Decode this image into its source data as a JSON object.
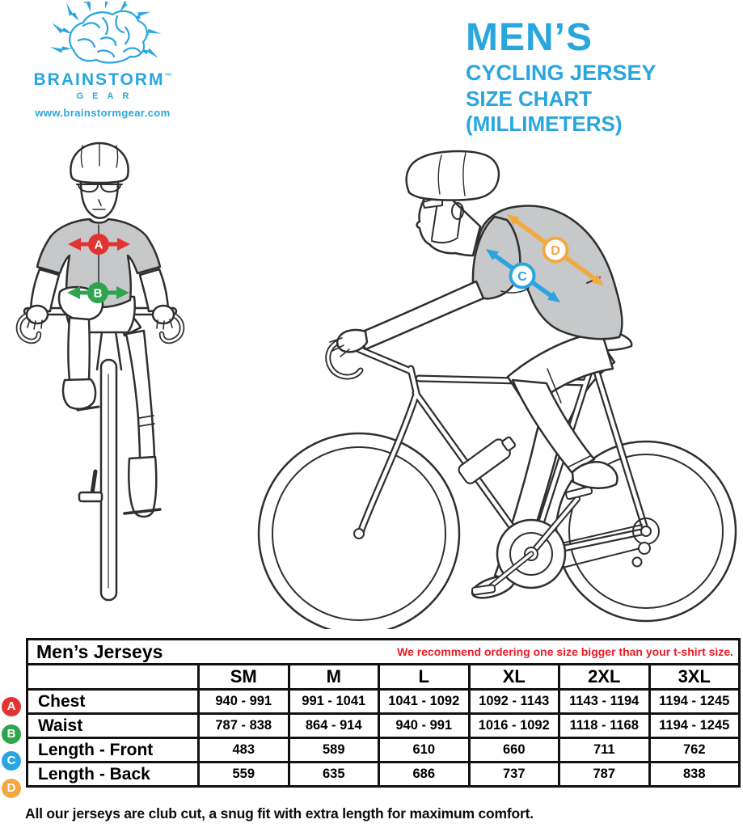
{
  "brand": {
    "name": "BRAINSTORM",
    "tm": "™",
    "sub": "GEAR",
    "url": "www.brainstormgear.com"
  },
  "title": {
    "line1": "MEN’S",
    "line2": "CYCLING JERSEY",
    "line3": "SIZE CHART (MILLIMETERS)"
  },
  "figures": {
    "front": {
      "a": "A",
      "b": "B"
    },
    "side": {
      "c": "C",
      "d": "D"
    }
  },
  "table": {
    "title": "Men’s Jerseys",
    "note": "We recommend ordering one size bigger than your t-shirt size.",
    "sizes": [
      "SM",
      "M",
      "L",
      "XL",
      "2XL",
      "3XL"
    ],
    "rows": [
      {
        "badge": "A",
        "badge_color": "#E23333",
        "label": "Chest",
        "values": [
          "940 - 991",
          "991 - 1041",
          "1041 - 1092",
          "1092 - 1143",
          "1143 - 1194",
          "1194 - 1245"
        ]
      },
      {
        "badge": "B",
        "badge_color": "#2FA44E",
        "label": "Waist",
        "values": [
          "787 - 838",
          "864 - 914",
          "940 - 991",
          "1016 - 1092",
          "1118 - 1168",
          "1194 - 1245"
        ]
      },
      {
        "badge": "C",
        "badge_color": "#2BA5E2",
        "label": "Length - Front",
        "values": [
          "483",
          "589",
          "610",
          "660",
          "711",
          "762"
        ]
      },
      {
        "badge": "D",
        "badge_color": "#F3A942",
        "label": "Length - Back",
        "values": [
          "559",
          "635",
          "686",
          "737",
          "787",
          "838"
        ]
      }
    ]
  },
  "footer": "All our jerseys are club cut, a snug fit with extra length for maximum comfort.",
  "colors": {
    "accent_cyan": "#29A6DE",
    "note_red": "#EC1C24",
    "arrow_a": "#E23333",
    "arrow_b": "#2FA44E",
    "arrow_c": "#2BA5E2",
    "arrow_d": "#F3A942"
  }
}
